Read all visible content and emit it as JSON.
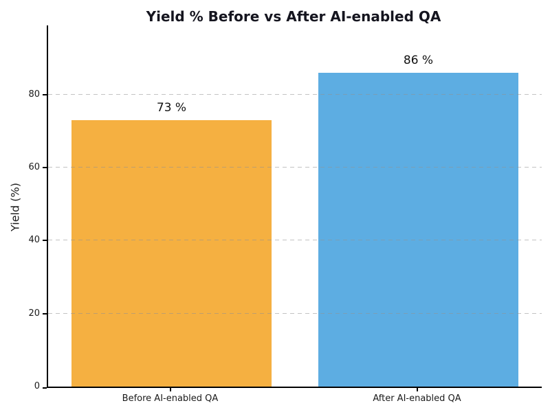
{
  "figure": {
    "background_color": "#ffffff",
    "spine_color": "#000000"
  },
  "chart_data": {
    "type": "bar",
    "title": "Yield % Before vs After AI-enabled QA",
    "categories": [
      "Before AI-enabled QA",
      "After AI-enabled QA"
    ],
    "values": [
      73,
      86
    ],
    "value_labels": [
      "73 %",
      "86 %"
    ],
    "bar_colors": [
      "#F5B041",
      "#5DADE2"
    ],
    "xlabel": "",
    "ylabel": "Yield (%)",
    "ylim": [
      0,
      98.9
    ],
    "yticks": [
      0,
      20,
      40,
      60,
      80
    ],
    "grid": {
      "axis": "y",
      "style": "dashed",
      "color": "#919191",
      "drawn_over_bars": true
    },
    "legend": null,
    "spines_visible": [
      "left",
      "bottom"
    ]
  }
}
